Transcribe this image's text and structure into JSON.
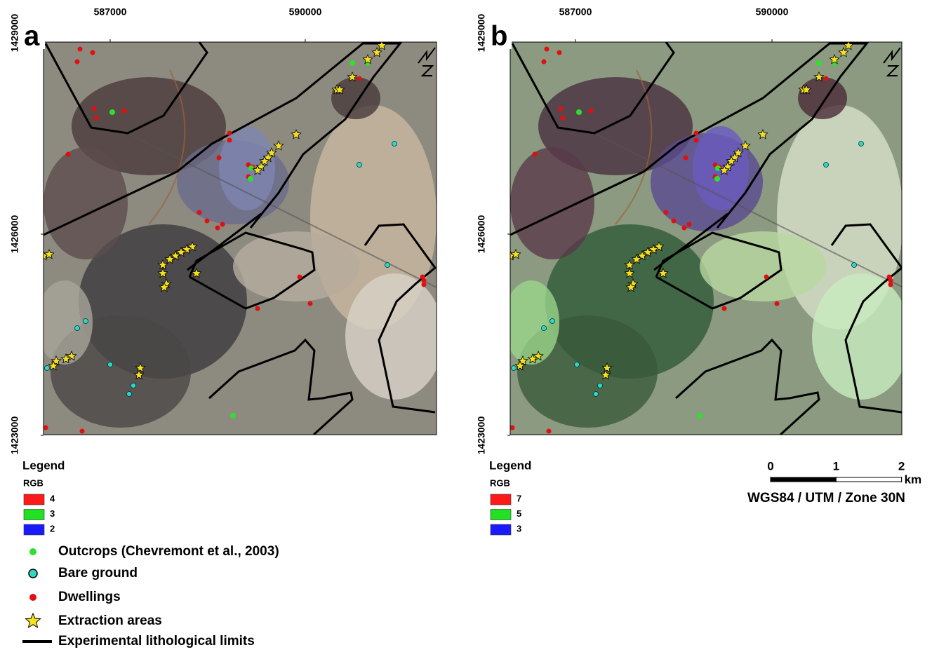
{
  "panels": [
    {
      "label": "a",
      "xticks": [
        587000,
        590000
      ],
      "yticks": [
        1429000,
        1426000,
        1423000
      ],
      "legend_title": "Legend",
      "rgb_title": "RGB",
      "bands": [
        {
          "color": "#ff1a1a",
          "label": "4"
        },
        {
          "color": "#22e022",
          "label": "3"
        },
        {
          "color": "#1a1aff",
          "label": "2"
        }
      ]
    },
    {
      "label": "b",
      "xticks": [
        587000,
        590000
      ],
      "yticks": [
        1429000,
        1426000,
        1423000
      ],
      "legend_title": "Legend",
      "rgb_title": "RGB",
      "bands": [
        {
          "color": "#ff1a1a",
          "label": "7"
        },
        {
          "color": "#22e022",
          "label": "5"
        },
        {
          "color": "#1a1aff",
          "label": "3"
        }
      ]
    }
  ],
  "symbols": [
    "Outcrops (Chevremont et al., 2003)",
    "Bare ground",
    "Dwellings",
    "Extraction areas",
    "Experimental lithological limits"
  ],
  "scale_bar": {
    "ticks": [
      0,
      1,
      2
    ],
    "unit": "km"
  },
  "crs": "WGS84 / UTM / Zone 30N"
}
